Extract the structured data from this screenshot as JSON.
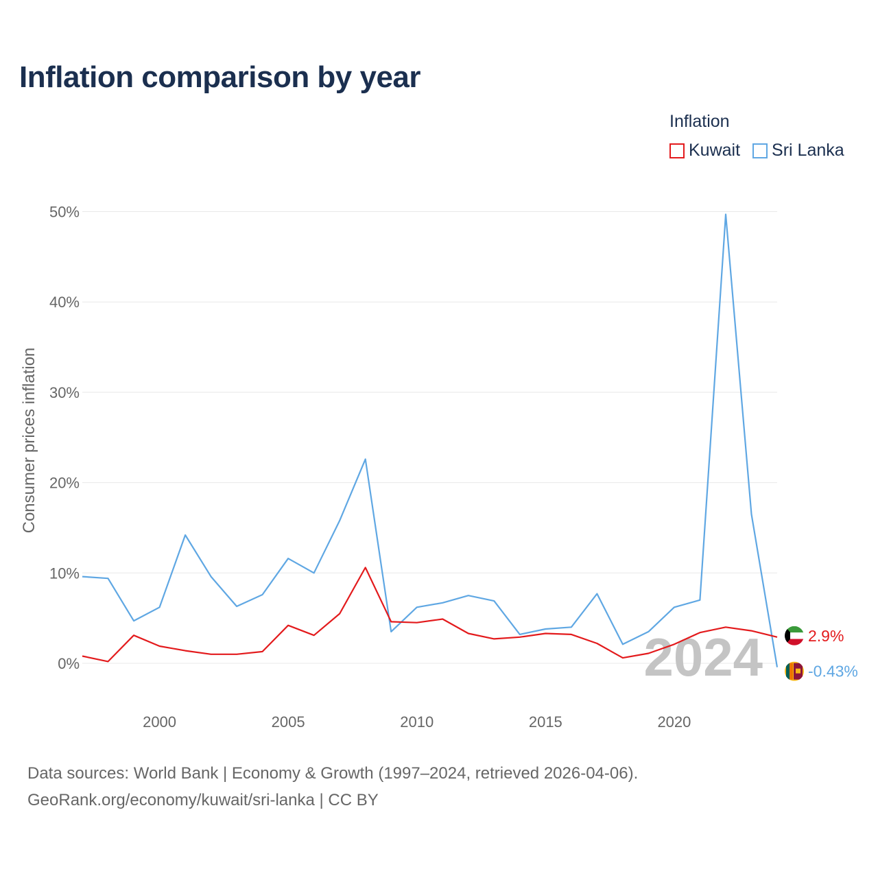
{
  "title": "Inflation comparison by year",
  "legend": {
    "title": "Inflation",
    "items": [
      {
        "label": "Kuwait",
        "color": "#e31a1c"
      },
      {
        "label": "Sri Lanka",
        "color": "#5fa7e3"
      }
    ]
  },
  "chart_data": {
    "type": "line",
    "title": "Inflation comparison by year",
    "xlabel": "",
    "ylabel": "Consumer prices inflation",
    "xlim": [
      1997,
      2024
    ],
    "ylim": [
      -5,
      52
    ],
    "x_ticks": [
      2000,
      2005,
      2010,
      2015,
      2020
    ],
    "y_ticks": [
      0,
      10,
      20,
      30,
      40,
      50
    ],
    "y_tick_labels": [
      "0%",
      "10%",
      "20%",
      "30%",
      "40%",
      "50%"
    ],
    "grid": true,
    "year_watermark": "2024",
    "x": [
      1997,
      1998,
      1999,
      2000,
      2001,
      2002,
      2003,
      2004,
      2005,
      2006,
      2007,
      2008,
      2009,
      2010,
      2011,
      2012,
      2013,
      2014,
      2015,
      2016,
      2017,
      2018,
      2019,
      2020,
      2021,
      2022,
      2023,
      2024
    ],
    "series": [
      {
        "name": "Kuwait",
        "color": "#e31a1c",
        "values": [
          0.8,
          0.2,
          3.1,
          1.9,
          1.4,
          1.0,
          1.0,
          1.3,
          4.2,
          3.1,
          5.5,
          10.6,
          4.6,
          4.5,
          4.9,
          3.3,
          2.7,
          2.9,
          3.3,
          3.2,
          2.2,
          0.6,
          1.1,
          2.1,
          3.4,
          4.0,
          3.6,
          2.9
        ],
        "end_label": "2.9%"
      },
      {
        "name": "Sri Lanka",
        "color": "#5fa7e3",
        "values": [
          9.6,
          9.4,
          4.7,
          6.2,
          14.2,
          9.6,
          6.3,
          7.6,
          11.6,
          10.0,
          15.8,
          22.6,
          3.5,
          6.2,
          6.7,
          7.5,
          6.9,
          3.2,
          3.8,
          4.0,
          7.7,
          2.1,
          3.5,
          6.2,
          7.0,
          49.7,
          16.5,
          -0.43
        ],
        "end_label": "-0.43%"
      }
    ]
  },
  "footer": {
    "line1": "Data sources: World Bank | Economy & Growth (1997–2024, retrieved 2026-04-06).",
    "line2": "GeoRank.org/economy/kuwait/sri-lanka | CC BY"
  }
}
